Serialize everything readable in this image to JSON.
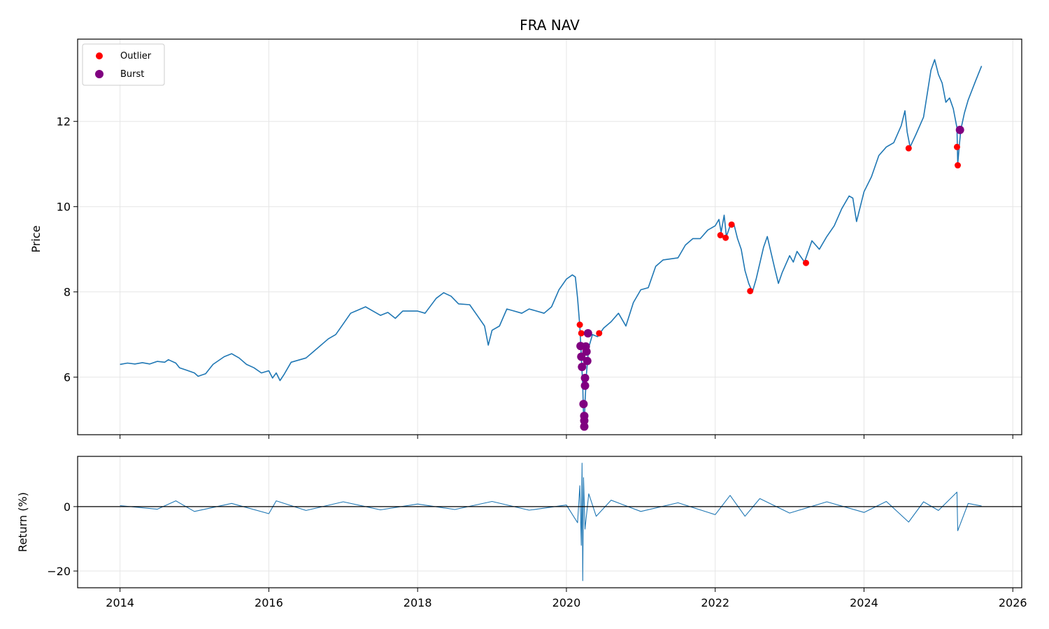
{
  "chart_data": [
    {
      "type": "line",
      "title": "FRA NAV",
      "xlabel": "",
      "ylabel": "Price",
      "xlim": [
        2013.43,
        2026.12
      ],
      "ylim": [
        4.65,
        13.93
      ],
      "x_ticks": [
        "2014",
        "2016",
        "2018",
        "2020",
        "2022",
        "2024",
        "2026"
      ],
      "y_ticks": [
        "6",
        "8",
        "10",
        "12"
      ],
      "grid": true,
      "legend": {
        "placement": "top-left",
        "entries": [
          "Outlier",
          "Burst"
        ]
      },
      "series": [
        {
          "color": "#1f77b4",
          "points": [
            [
              2014.0,
              6.3
            ],
            [
              2014.1,
              6.33
            ],
            [
              2014.2,
              6.31
            ],
            [
              2014.3,
              6.34
            ],
            [
              2014.4,
              6.31
            ],
            [
              2014.5,
              6.37
            ],
            [
              2014.6,
              6.35
            ],
            [
              2014.65,
              6.41
            ],
            [
              2014.75,
              6.33
            ],
            [
              2014.8,
              6.22
            ],
            [
              2014.9,
              6.16
            ],
            [
              2015.0,
              6.1
            ],
            [
              2015.05,
              6.02
            ],
            [
              2015.15,
              6.08
            ],
            [
              2015.25,
              6.3
            ],
            [
              2015.4,
              6.48
            ],
            [
              2015.5,
              6.55
            ],
            [
              2015.6,
              6.45
            ],
            [
              2015.7,
              6.3
            ],
            [
              2015.8,
              6.22
            ],
            [
              2015.9,
              6.1
            ],
            [
              2016.0,
              6.15
            ],
            [
              2016.05,
              5.98
            ],
            [
              2016.1,
              6.1
            ],
            [
              2016.15,
              5.92
            ],
            [
              2016.2,
              6.05
            ],
            [
              2016.3,
              6.35
            ],
            [
              2016.5,
              6.45
            ],
            [
              2016.6,
              6.6
            ],
            [
              2016.8,
              6.9
            ],
            [
              2016.9,
              7.0
            ],
            [
              2017.0,
              7.25
            ],
            [
              2017.1,
              7.5
            ],
            [
              2017.3,
              7.65
            ],
            [
              2017.4,
              7.55
            ],
            [
              2017.5,
              7.45
            ],
            [
              2017.6,
              7.52
            ],
            [
              2017.7,
              7.38
            ],
            [
              2017.8,
              7.55
            ],
            [
              2018.0,
              7.55
            ],
            [
              2018.1,
              7.5
            ],
            [
              2018.25,
              7.85
            ],
            [
              2018.35,
              7.98
            ],
            [
              2018.45,
              7.9
            ],
            [
              2018.55,
              7.72
            ],
            [
              2018.7,
              7.7
            ],
            [
              2018.8,
              7.45
            ],
            [
              2018.9,
              7.2
            ],
            [
              2018.95,
              6.75
            ],
            [
              2019.0,
              7.1
            ],
            [
              2019.1,
              7.2
            ],
            [
              2019.2,
              7.6
            ],
            [
              2019.3,
              7.55
            ],
            [
              2019.4,
              7.5
            ],
            [
              2019.5,
              7.6
            ],
            [
              2019.6,
              7.55
            ],
            [
              2019.7,
              7.5
            ],
            [
              2019.8,
              7.65
            ],
            [
              2019.9,
              8.05
            ],
            [
              2020.0,
              8.3
            ],
            [
              2020.08,
              8.4
            ],
            [
              2020.12,
              8.35
            ],
            [
              2020.15,
              7.85
            ],
            [
              2020.18,
              7.2
            ],
            [
              2020.2,
              6.5
            ],
            [
              2020.22,
              5.8
            ],
            [
              2020.23,
              5.1
            ],
            [
              2020.24,
              4.85
            ],
            [
              2020.25,
              5.4
            ],
            [
              2020.27,
              6.1
            ],
            [
              2020.3,
              6.7
            ],
            [
              2020.35,
              7.0
            ],
            [
              2020.42,
              6.95
            ],
            [
              2020.5,
              7.15
            ],
            [
              2020.6,
              7.3
            ],
            [
              2020.7,
              7.5
            ],
            [
              2020.8,
              7.2
            ],
            [
              2020.9,
              7.75
            ],
            [
              2021.0,
              8.05
            ],
            [
              2021.1,
              8.1
            ],
            [
              2021.2,
              8.6
            ],
            [
              2021.3,
              8.75
            ],
            [
              2021.5,
              8.8
            ],
            [
              2021.6,
              9.1
            ],
            [
              2021.7,
              9.25
            ],
            [
              2021.8,
              9.25
            ],
            [
              2021.9,
              9.45
            ],
            [
              2022.0,
              9.55
            ],
            [
              2022.05,
              9.7
            ],
            [
              2022.08,
              9.4
            ],
            [
              2022.12,
              9.8
            ],
            [
              2022.15,
              9.3
            ],
            [
              2022.2,
              9.55
            ],
            [
              2022.25,
              9.6
            ],
            [
              2022.3,
              9.25
            ],
            [
              2022.35,
              9.0
            ],
            [
              2022.4,
              8.5
            ],
            [
              2022.45,
              8.2
            ],
            [
              2022.5,
              8.0
            ],
            [
              2022.55,
              8.3
            ],
            [
              2022.65,
              9.05
            ],
            [
              2022.7,
              9.3
            ],
            [
              2022.8,
              8.55
            ],
            [
              2022.85,
              8.2
            ],
            [
              2022.9,
              8.45
            ],
            [
              2023.0,
              8.85
            ],
            [
              2023.05,
              8.7
            ],
            [
              2023.1,
              8.95
            ],
            [
              2023.2,
              8.7
            ],
            [
              2023.3,
              9.2
            ],
            [
              2023.4,
              9.0
            ],
            [
              2023.5,
              9.3
            ],
            [
              2023.6,
              9.55
            ],
            [
              2023.7,
              9.95
            ],
            [
              2023.8,
              10.25
            ],
            [
              2023.85,
              10.2
            ],
            [
              2023.9,
              9.65
            ],
            [
              2024.0,
              10.35
            ],
            [
              2024.1,
              10.7
            ],
            [
              2024.2,
              11.2
            ],
            [
              2024.3,
              11.4
            ],
            [
              2024.4,
              11.5
            ],
            [
              2024.5,
              11.9
            ],
            [
              2024.55,
              12.25
            ],
            [
              2024.58,
              11.75
            ],
            [
              2024.62,
              11.4
            ],
            [
              2024.7,
              11.7
            ],
            [
              2024.8,
              12.1
            ],
            [
              2024.85,
              12.65
            ],
            [
              2024.9,
              13.2
            ],
            [
              2024.95,
              13.45
            ],
            [
              2025.0,
              13.1
            ],
            [
              2025.05,
              12.9
            ],
            [
              2025.1,
              12.45
            ],
            [
              2025.15,
              12.55
            ],
            [
              2025.2,
              12.3
            ],
            [
              2025.25,
              11.85
            ],
            [
              2025.26,
              11.0
            ],
            [
              2025.28,
              11.4
            ],
            [
              2025.3,
              11.8
            ],
            [
              2025.35,
              12.2
            ],
            [
              2025.4,
              12.5
            ],
            [
              2025.5,
              12.95
            ],
            [
              2025.58,
              13.3
            ]
          ]
        }
      ],
      "outliers": {
        "color": "#ff0000",
        "points": [
          [
            2020.18,
            7.23
          ],
          [
            2020.2,
            7.03
          ],
          [
            2020.44,
            7.03
          ],
          [
            2022.07,
            9.33
          ],
          [
            2022.14,
            9.27
          ],
          [
            2022.22,
            9.58
          ],
          [
            2022.47,
            8.02
          ],
          [
            2023.22,
            8.68
          ],
          [
            2024.6,
            11.37
          ],
          [
            2025.25,
            11.4
          ],
          [
            2025.26,
            10.97
          ],
          [
            2025.28,
            11.79
          ]
        ]
      },
      "bursts": {
        "color": "#800080",
        "points": [
          [
            2020.19,
            6.73
          ],
          [
            2020.2,
            6.48
          ],
          [
            2020.21,
            6.24
          ],
          [
            2020.23,
            5.37
          ],
          [
            2020.24,
            5.09
          ],
          [
            2020.24,
            4.84
          ],
          [
            2020.24,
            4.98
          ],
          [
            2020.25,
            5.8
          ],
          [
            2020.25,
            5.98
          ],
          [
            2020.26,
            6.72
          ],
          [
            2020.27,
            6.6
          ],
          [
            2020.28,
            6.38
          ],
          [
            2020.29,
            7.03
          ],
          [
            2025.29,
            11.8
          ]
        ]
      }
    },
    {
      "type": "line",
      "title": "",
      "xlabel": "",
      "ylabel": "Return (%)",
      "xlim": [
        2013.43,
        2026.12
      ],
      "ylim": [
        -25.2,
        15.6
      ],
      "x_ticks": [
        "2014",
        "2016",
        "2018",
        "2020",
        "2022",
        "2024",
        "2026"
      ],
      "y_ticks": [
        "0",
        "−20"
      ],
      "grid": true,
      "zero_line": true,
      "series": [
        {
          "color": "#1f77b4",
          "points": [
            [
              2014.0,
              0.3
            ],
            [
              2014.5,
              -0.8
            ],
            [
              2014.75,
              1.8
            ],
            [
              2015.0,
              -1.5
            ],
            [
              2015.5,
              1.0
            ],
            [
              2016.0,
              -2.2
            ],
            [
              2016.1,
              1.8
            ],
            [
              2016.5,
              -1.2
            ],
            [
              2017.0,
              1.5
            ],
            [
              2017.5,
              -1.0
            ],
            [
              2018.0,
              0.8
            ],
            [
              2018.5,
              -0.9
            ],
            [
              2019.0,
              1.6
            ],
            [
              2019.5,
              -1.1
            ],
            [
              2020.0,
              0.5
            ],
            [
              2020.15,
              -5.0
            ],
            [
              2020.18,
              6.5
            ],
            [
              2020.2,
              -12.0
            ],
            [
              2020.21,
              13.5
            ],
            [
              2020.22,
              -23.0
            ],
            [
              2020.23,
              9.0
            ],
            [
              2020.25,
              -7.0
            ],
            [
              2020.3,
              4.0
            ],
            [
              2020.4,
              -3.0
            ],
            [
              2020.6,
              2.0
            ],
            [
              2021.0,
              -1.5
            ],
            [
              2021.5,
              1.2
            ],
            [
              2022.0,
              -2.5
            ],
            [
              2022.2,
              3.5
            ],
            [
              2022.4,
              -3.0
            ],
            [
              2022.6,
              2.5
            ],
            [
              2023.0,
              -2.0
            ],
            [
              2023.5,
              1.5
            ],
            [
              2024.0,
              -1.8
            ],
            [
              2024.3,
              1.6
            ],
            [
              2024.6,
              -4.8
            ],
            [
              2024.8,
              1.5
            ],
            [
              2025.0,
              -1.2
            ],
            [
              2025.25,
              4.5
            ],
            [
              2025.26,
              -7.5
            ],
            [
              2025.4,
              1.0
            ],
            [
              2025.58,
              0.2
            ]
          ]
        }
      ]
    }
  ]
}
